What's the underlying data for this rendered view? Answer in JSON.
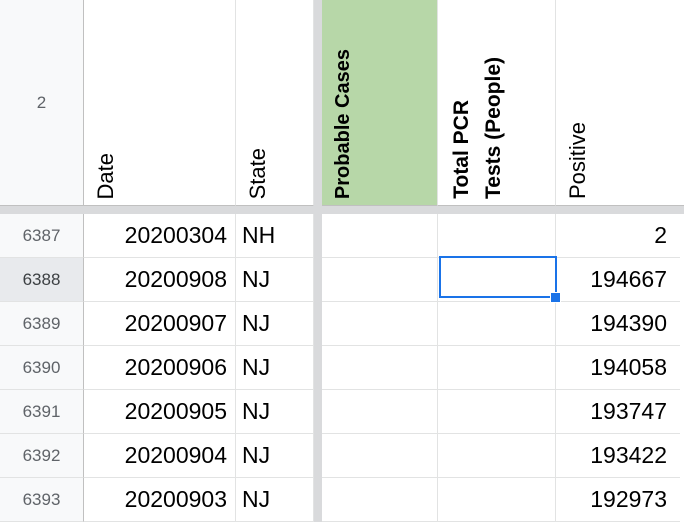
{
  "header_row_number": "2",
  "columns": {
    "date": "Date",
    "state": "State",
    "probable_cases": "Probable Cases",
    "total_pcr_line1": "Total PCR",
    "total_pcr_line2": "Tests (People)",
    "positive": "Positive"
  },
  "colors": {
    "highlight_header": "#b7d7a8",
    "selection": "#1a73e8"
  },
  "rows": [
    {
      "row": "6387",
      "date": "20200304",
      "state": "NH",
      "probable": "",
      "total_pcr": "",
      "positive": "2"
    },
    {
      "row": "6388",
      "date": "20200908",
      "state": "NJ",
      "probable": "",
      "total_pcr": "",
      "positive": "194667"
    },
    {
      "row": "6389",
      "date": "20200907",
      "state": "NJ",
      "probable": "",
      "total_pcr": "",
      "positive": "194390"
    },
    {
      "row": "6390",
      "date": "20200906",
      "state": "NJ",
      "probable": "",
      "total_pcr": "",
      "positive": "194058"
    },
    {
      "row": "6391",
      "date": "20200905",
      "state": "NJ",
      "probable": "",
      "total_pcr": "",
      "positive": "193747"
    },
    {
      "row": "6392",
      "date": "20200904",
      "state": "NJ",
      "probable": "",
      "total_pcr": "",
      "positive": "193422"
    },
    {
      "row": "6393",
      "date": "20200903",
      "state": "NJ",
      "probable": "",
      "total_pcr": "",
      "positive": "192973"
    }
  ],
  "selected_cell": {
    "row": "6388",
    "column": "total_pcr"
  }
}
